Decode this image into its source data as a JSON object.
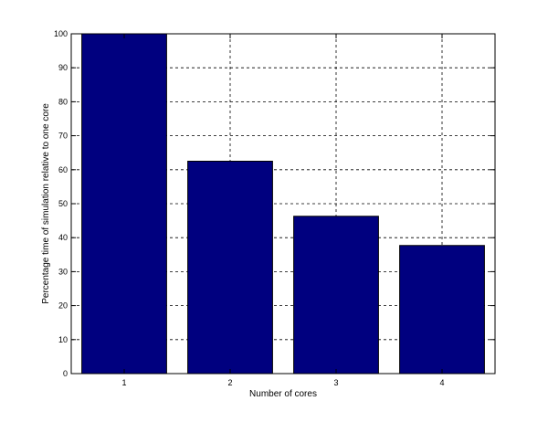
{
  "chart_data": {
    "type": "bar",
    "categories": [
      "1",
      "2",
      "3",
      "4"
    ],
    "values": [
      100,
      62.5,
      46.3,
      37.7
    ],
    "xlabel": "Number of cores",
    "ylabel": "Percentage time of simulation relative to one core",
    "ylim": [
      0,
      100
    ],
    "yticks": [
      "0",
      "10",
      "20",
      "30",
      "40",
      "50",
      "60",
      "70",
      "80",
      "90",
      "100"
    ],
    "grid": true,
    "grid_style": "dashed",
    "bar_color": "#00007f"
  }
}
